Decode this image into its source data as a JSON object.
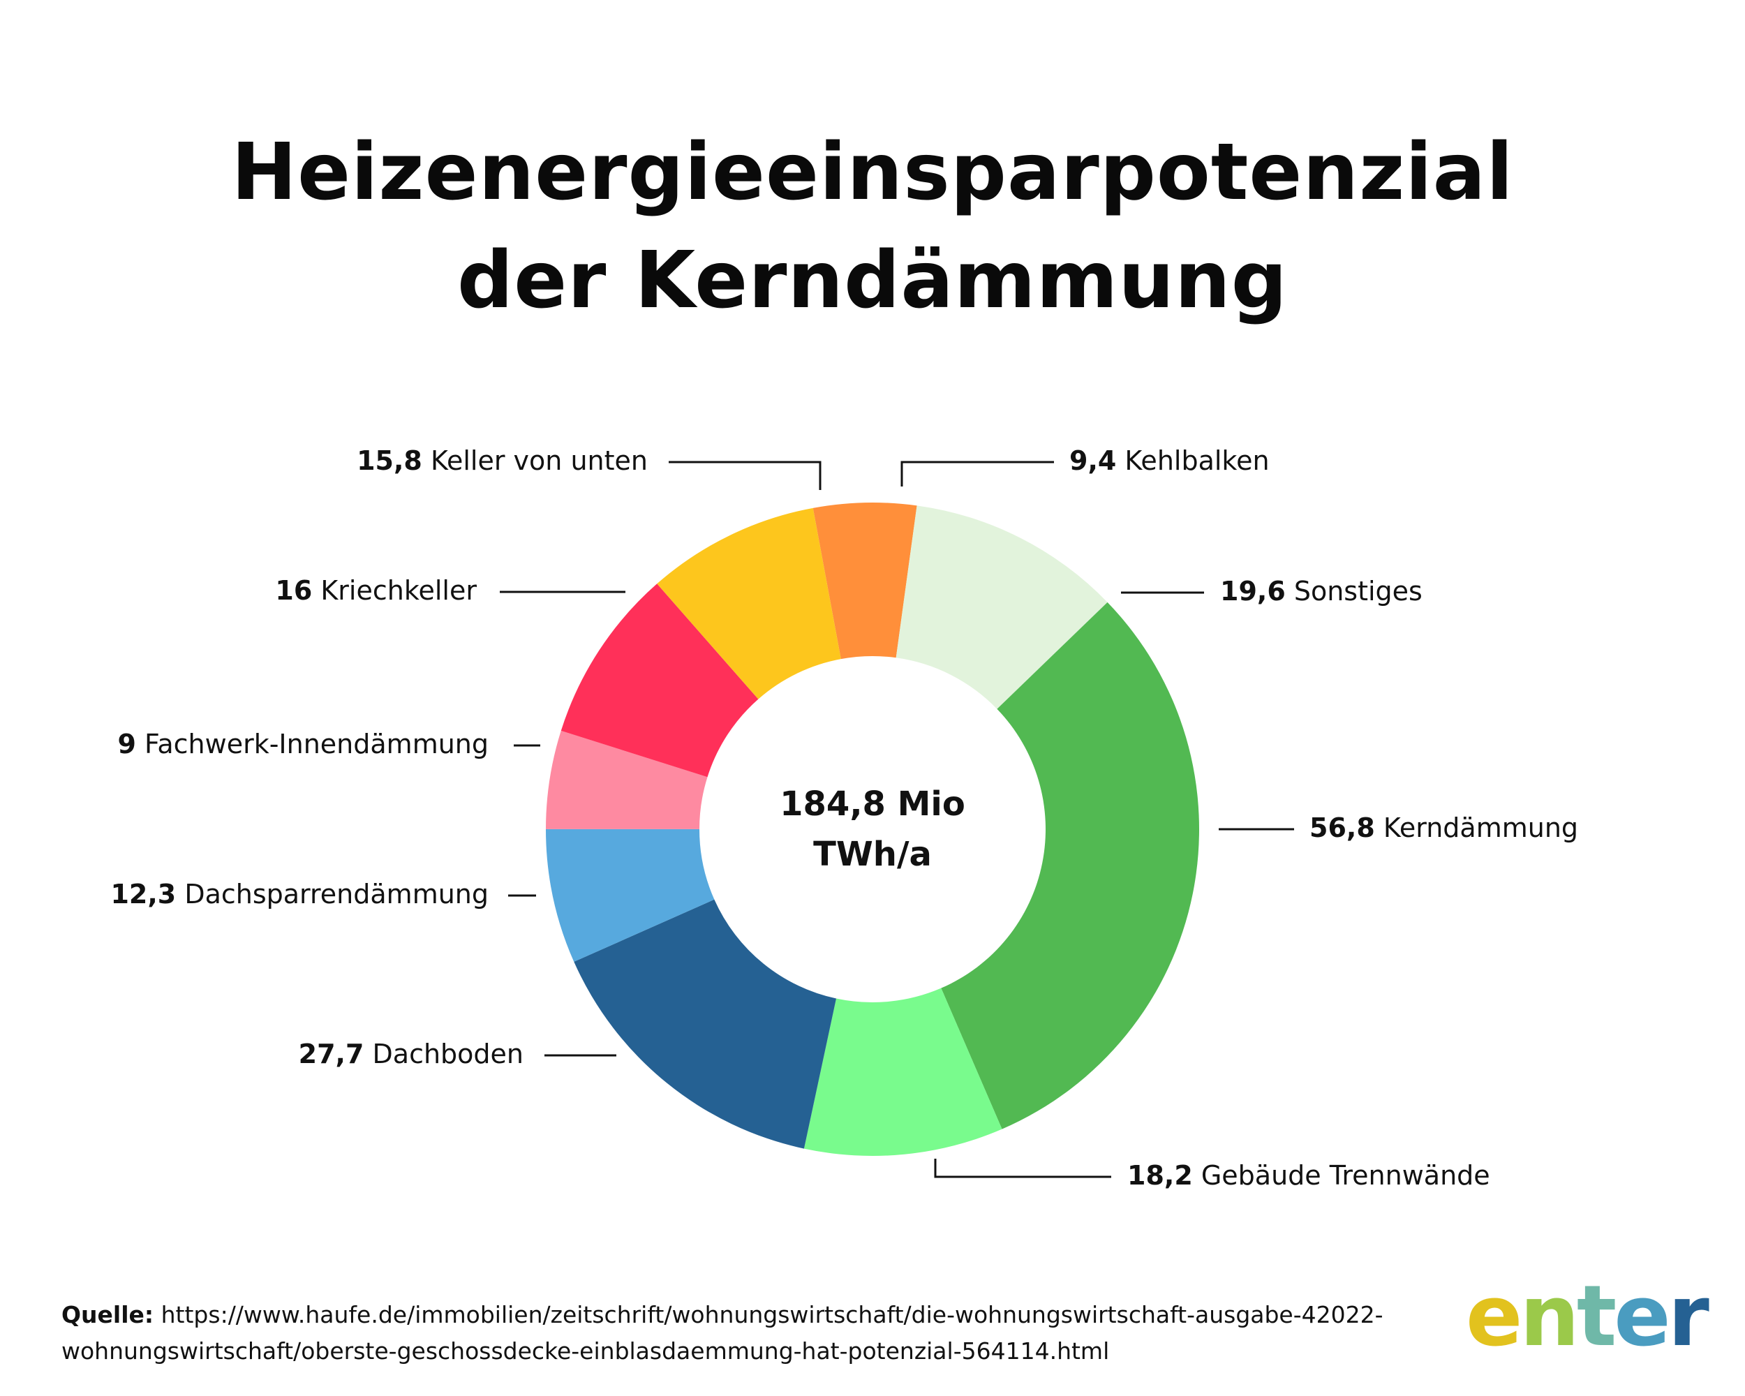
{
  "title": {
    "line1": "Heizenergieeinsparpotenzial",
    "line2": "der Kerndämmung"
  },
  "chart_data": {
    "type": "pie",
    "donut": true,
    "center_label": [
      "184,8 Mio",
      "TWh/a"
    ],
    "slices": [
      {
        "label": "Kehlbalken",
        "value": 9.4,
        "display": "9,4",
        "color": "#FF8F3A"
      },
      {
        "label": "Sonstiges",
        "value": 19.6,
        "display": "19,6",
        "color": "#E2F3DC"
      },
      {
        "label": "Kerndämmung",
        "value": 56.8,
        "display": "56,8",
        "color": "#52B952"
      },
      {
        "label": "Gebäude Trennwände",
        "value": 18.2,
        "display": "18,2",
        "color": "#79FB8D"
      },
      {
        "label": "Dachboden",
        "value": 27.7,
        "display": "27,7",
        "color": "#256193"
      },
      {
        "label": "Dachsparrendämmung",
        "value": 12.3,
        "display": "12,3",
        "color": "#57A9DE"
      },
      {
        "label": "Fachwerk-Innendämmung",
        "value": 9,
        "display": "9",
        "color": "#FE8AA1"
      },
      {
        "label": "Kriechkeller",
        "value": 16,
        "display": "16",
        "color": "#FF3059"
      },
      {
        "label": "Keller von unten",
        "value": 15.8,
        "display": "15,8",
        "color": "#FDC61D"
      }
    ]
  },
  "source": {
    "label": "Quelle:",
    "url": "https://www.haufe.de/immobilien/zeitschrift/wohnungswirtschaft/die-wohnungswirtschaft-ausgabe-42022-wohnungswirtschaft/oberste-geschossdecke-einblasdaemmung-hat-potenzial-564114.html"
  },
  "logo": {
    "text": "enter",
    "colors": [
      "#E2C21E",
      "#9BC94A",
      "#6FB8A8",
      "#4A9CC0",
      "#256193"
    ]
  }
}
